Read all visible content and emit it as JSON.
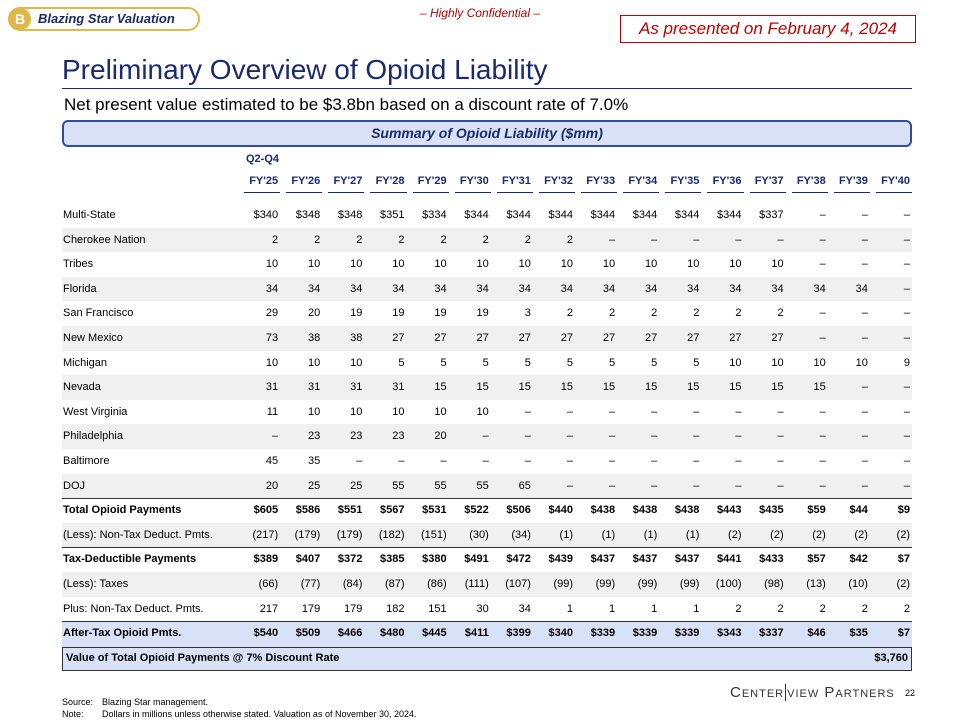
{
  "header": {
    "badge": "B",
    "company": "Blazing Star Valuation",
    "confidential": "– Highly Confidential –",
    "presented": "As presented on February 4, 2024"
  },
  "title": "Preliminary Overview of Opioid Liability",
  "subtitle": "Net present value estimated to be $3.8bn based on a discount rate of 7.0%",
  "section": "Summary of Opioid Liability ($mm)",
  "table": {
    "period_label": "Q2-Q4",
    "columns": [
      "FY'25",
      "FY'26",
      "FY'27",
      "FY'28",
      "FY'29",
      "FY'30",
      "FY'31",
      "FY'32",
      "FY'33",
      "FY'34",
      "FY'35",
      "FY'36",
      "FY'37",
      "FY'38",
      "FY'39",
      "FY'40"
    ],
    "rows": [
      {
        "label": "Multi-State",
        "cells": [
          "$340",
          "$348",
          "$348",
          "$351",
          "$334",
          "$344",
          "$344",
          "$344",
          "$344",
          "$344",
          "$344",
          "$344",
          "$337",
          "–",
          "–",
          "–"
        ]
      },
      {
        "label": "Cherokee Nation",
        "cells": [
          "2",
          "2",
          "2",
          "2",
          "2",
          "2",
          "2",
          "2",
          "–",
          "–",
          "–",
          "–",
          "–",
          "–",
          "–",
          "–"
        ]
      },
      {
        "label": "Tribes",
        "cells": [
          "10",
          "10",
          "10",
          "10",
          "10",
          "10",
          "10",
          "10",
          "10",
          "10",
          "10",
          "10",
          "10",
          "–",
          "–",
          "–"
        ]
      },
      {
        "label": "Florida",
        "cells": [
          "34",
          "34",
          "34",
          "34",
          "34",
          "34",
          "34",
          "34",
          "34",
          "34",
          "34",
          "34",
          "34",
          "34",
          "34",
          "–"
        ]
      },
      {
        "label": "San Francisco",
        "cells": [
          "29",
          "20",
          "19",
          "19",
          "19",
          "19",
          "3",
          "2",
          "2",
          "2",
          "2",
          "2",
          "2",
          "–",
          "–",
          "–"
        ]
      },
      {
        "label": "New Mexico",
        "cells": [
          "73",
          "38",
          "38",
          "27",
          "27",
          "27",
          "27",
          "27",
          "27",
          "27",
          "27",
          "27",
          "27",
          "–",
          "–",
          "–"
        ]
      },
      {
        "label": "Michigan",
        "cells": [
          "10",
          "10",
          "10",
          "5",
          "5",
          "5",
          "5",
          "5",
          "5",
          "5",
          "5",
          "10",
          "10",
          "10",
          "10",
          "9"
        ]
      },
      {
        "label": "Nevada",
        "cells": [
          "31",
          "31",
          "31",
          "31",
          "15",
          "15",
          "15",
          "15",
          "15",
          "15",
          "15",
          "15",
          "15",
          "15",
          "–",
          "–"
        ]
      },
      {
        "label": "West Virginia",
        "cells": [
          "11",
          "10",
          "10",
          "10",
          "10",
          "10",
          "–",
          "–",
          "–",
          "–",
          "–",
          "–",
          "–",
          "–",
          "–",
          "–"
        ]
      },
      {
        "label": "Philadelphia",
        "cells": [
          "–",
          "23",
          "23",
          "23",
          "20",
          "–",
          "–",
          "–",
          "–",
          "–",
          "–",
          "–",
          "–",
          "–",
          "–",
          "–"
        ]
      },
      {
        "label": "Baltimore",
        "cells": [
          "45",
          "35",
          "–",
          "–",
          "–",
          "–",
          "–",
          "–",
          "–",
          "–",
          "–",
          "–",
          "–",
          "–",
          "–",
          "–"
        ]
      },
      {
        "label": "DOJ",
        "cells": [
          "20",
          "25",
          "25",
          "55",
          "55",
          "55",
          "65",
          "–",
          "–",
          "–",
          "–",
          "–",
          "–",
          "–",
          "–",
          "–"
        ]
      },
      {
        "label": "Total Opioid Payments",
        "cells": [
          "$605",
          "$586",
          "$551",
          "$567",
          "$531",
          "$522",
          "$506",
          "$440",
          "$438",
          "$438",
          "$438",
          "$443",
          "$435",
          "$59",
          "$44",
          "$9"
        ]
      },
      {
        "label": "(Less): Non-Tax Deduct. Pmts.",
        "cells": [
          "(217)",
          "(179)",
          "(179)",
          "(182)",
          "(151)",
          "(30)",
          "(34)",
          "(1)",
          "(1)",
          "(1)",
          "(1)",
          "(2)",
          "(2)",
          "(2)",
          "(2)",
          "(2)"
        ]
      },
      {
        "label": "Tax-Deductible Payments",
        "cells": [
          "$389",
          "$407",
          "$372",
          "$385",
          "$380",
          "$491",
          "$472",
          "$439",
          "$437",
          "$437",
          "$437",
          "$441",
          "$433",
          "$57",
          "$42",
          "$7"
        ]
      },
      {
        "label": "(Less): Taxes",
        "cells": [
          "(66)",
          "(77)",
          "(84)",
          "(87)",
          "(86)",
          "(111)",
          "(107)",
          "(99)",
          "(99)",
          "(99)",
          "(99)",
          "(100)",
          "(98)",
          "(13)",
          "(10)",
          "(2)"
        ]
      },
      {
        "label": "Plus: Non-Tax Deduct. Pmts.",
        "cells": [
          "217",
          "179",
          "179",
          "182",
          "151",
          "30",
          "34",
          "1",
          "1",
          "1",
          "1",
          "2",
          "2",
          "2",
          "2",
          "2"
        ]
      },
      {
        "label": "After-Tax Opioid Pmts.",
        "cells": [
          "$540",
          "$509",
          "$466",
          "$480",
          "$445",
          "$411",
          "$399",
          "$340",
          "$339",
          "$339",
          "$339",
          "$343",
          "$337",
          "$46",
          "$35",
          "$7"
        ]
      }
    ],
    "value_row": {
      "label": "Value of Total Opioid Payments @ 7% Discount Rate",
      "value": "$3,760"
    }
  },
  "footer": {
    "page": "22",
    "logo_left": "Center",
    "logo_right": "view Partners",
    "source_label": "Source:",
    "source": "Blazing Star management.",
    "note_label": "Note:",
    "note": "Dollars in millions unless otherwise stated. Valuation as of November 30, 2024."
  }
}
